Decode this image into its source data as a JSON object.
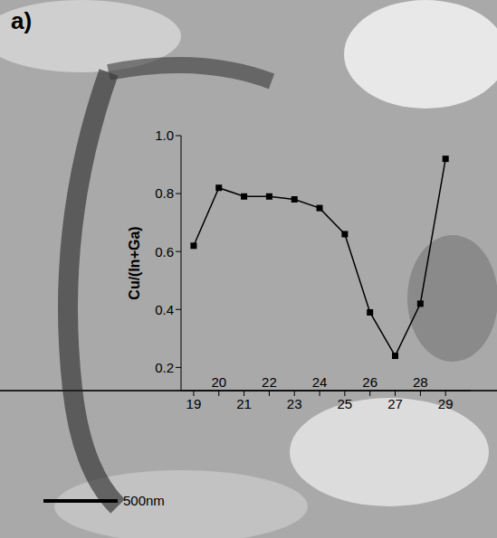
{
  "chart_data": {
    "type": "line",
    "panel_label": "a)",
    "scale_bar": "500nm",
    "y_label": "Cu/(In+Ga)",
    "x": [
      19,
      20,
      21,
      22,
      23,
      24,
      25,
      26,
      27,
      28,
      29
    ],
    "values": [
      0.62,
      0.82,
      0.79,
      0.79,
      0.78,
      0.75,
      0.66,
      0.39,
      0.24,
      0.42,
      0.92
    ],
    "color": "#000000",
    "marker": "square",
    "line_style": "solid",
    "xlim": [
      18.5,
      30
    ],
    "xticks": [
      19,
      20,
      21,
      22,
      23,
      24,
      25,
      26,
      27,
      28,
      29
    ],
    "ylim": [
      0.12,
      1.0
    ],
    "yticks": [
      0.2,
      0.4,
      0.6,
      0.8,
      {
        "value": 1,
        "label": "1.0"
      }
    ],
    "grid": false
  }
}
